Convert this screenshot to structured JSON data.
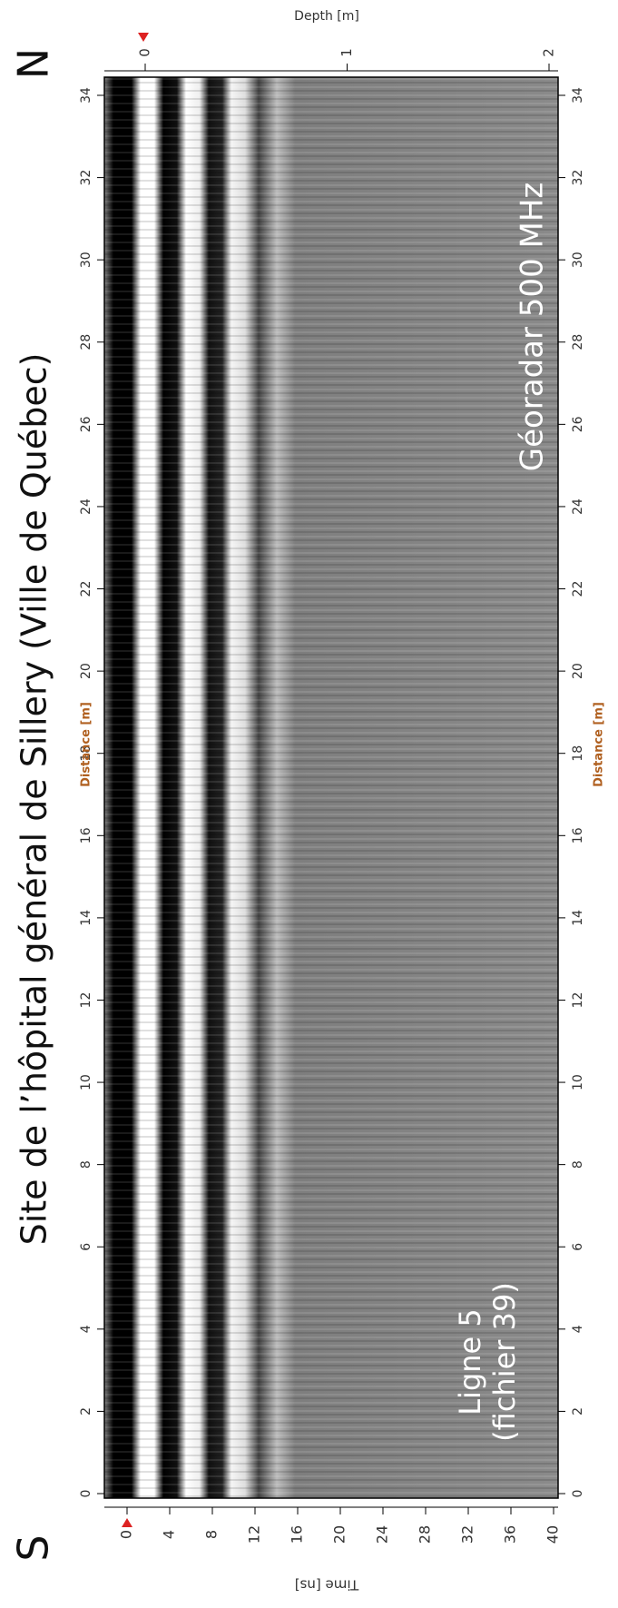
{
  "title": "Site de l’hôpital général de Sillery (Ville de Québec)",
  "north": "N",
  "south": "S",
  "depth_axis": {
    "label": "Depth [m]",
    "ticks": [
      0,
      1,
      2
    ]
  },
  "time_axis": {
    "label": "Time [ns]",
    "ticks": [
      0,
      4,
      8,
      12,
      16,
      20,
      24,
      28,
      32,
      36,
      40
    ]
  },
  "distance_axis": {
    "label": "Distance [m]",
    "ticks": [
      0,
      2,
      4,
      6,
      8,
      10,
      12,
      14,
      16,
      18,
      20,
      22,
      24,
      26,
      28,
      30,
      32,
      34
    ]
  },
  "annotations": {
    "line": [
      "Ligne 5",
      "(fichier 39)"
    ],
    "radar": "Géoradar 500 MHz"
  }
}
